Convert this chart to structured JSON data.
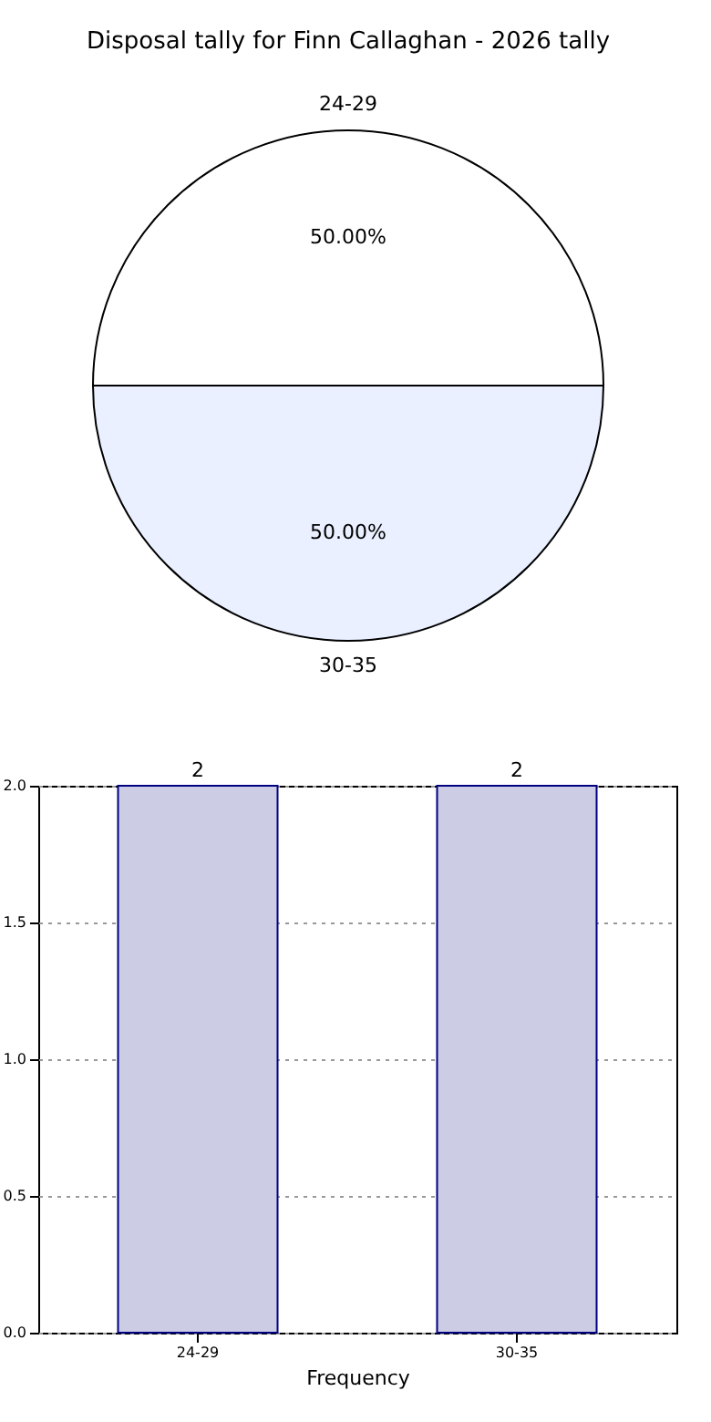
{
  "chart_data": [
    {
      "type": "pie",
      "title": "Disposal tally for Finn Callaghan - 2026 tally",
      "categories": [
        "24-29",
        "30-35"
      ],
      "values": [
        50,
        50
      ],
      "colors": [
        "#ffffff",
        "#eaf0ff"
      ],
      "value_labels": [
        "50.00%",
        "50.00%"
      ],
      "legend": false
    },
    {
      "type": "bar",
      "xlabel": "Frequency",
      "categories": [
        "24-29",
        "30-35"
      ],
      "values": [
        2,
        2
      ],
      "color": "#ccccE5",
      "ylim": [
        0,
        2
      ],
      "yticks": [
        {
          "value": 0,
          "label": "0.0"
        },
        {
          "value": 0.5,
          "label": "0.5"
        },
        {
          "value": 1,
          "label": "1.0"
        },
        {
          "value": 1.5,
          "label": "1.5"
        },
        {
          "value": 2,
          "label": "2.0"
        }
      ],
      "grid": true,
      "data_labels": true
    }
  ]
}
